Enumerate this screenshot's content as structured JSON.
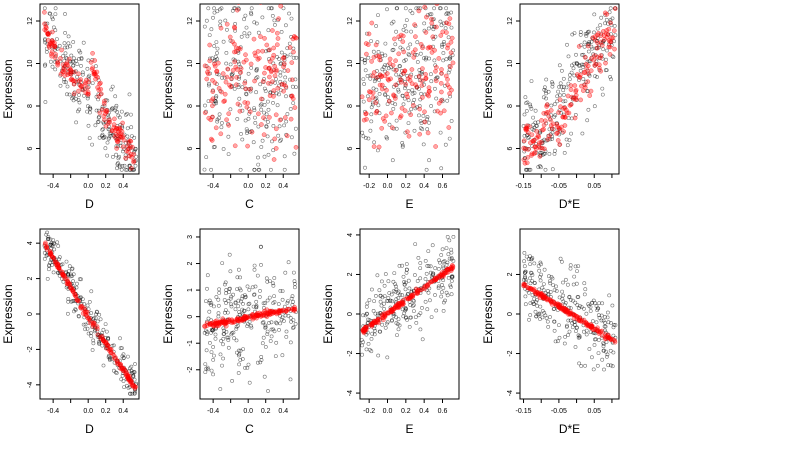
{
  "colors": {
    "observed": "#000000",
    "fitted": "#ff0000",
    "background": "#ffffff"
  },
  "chart_data": [
    {
      "type": "scatter",
      "panel": "top-1",
      "xlabel": "D",
      "ylabel": "Expression",
      "xlim": [
        -0.55,
        0.58
      ],
      "ylim": [
        4.8,
        12.8
      ],
      "xticks": [
        -0.4,
        -0.2,
        0.0,
        0.2,
        0.4
      ],
      "xtick_labels": [
        "-0.4",
        "",
        "0.0",
        "0.2",
        "0.4"
      ],
      "yticks": [
        6,
        8,
        10,
        12
      ],
      "ytick_labels": [
        "6",
        "8",
        "10",
        "12"
      ],
      "observed": {
        "x_range": [
          -0.5,
          0.55
        ],
        "y_range": [
          5.0,
          12.6
        ],
        "trend": [
          [
            -0.5,
            11.4
          ],
          [
            -0.3,
            10.1
          ],
          [
            0.0,
            8.8
          ],
          [
            0.2,
            7.4
          ],
          [
            0.5,
            5.8
          ]
        ],
        "spread": 0.9
      },
      "fitted": {
        "x_range": [
          -0.5,
          0.55
        ],
        "trend": [
          [
            -0.5,
            11.6
          ],
          [
            -0.3,
            9.9
          ],
          [
            0.0,
            8.6
          ],
          [
            0.05,
            10.0
          ],
          [
            0.2,
            7.4
          ],
          [
            0.5,
            5.8
          ]
        ],
        "spread": 0.3
      }
    },
    {
      "type": "scatter",
      "panel": "top-2",
      "xlabel": "C",
      "ylabel": "Expression",
      "xlim": [
        -0.55,
        0.58
      ],
      "ylim": [
        4.8,
        12.8
      ],
      "xticks": [
        -0.4,
        -0.2,
        0.0,
        0.2,
        0.4
      ],
      "xtick_labels": [
        "-0.4",
        "",
        "0.0",
        "0.2",
        "0.4"
      ],
      "yticks": [
        6,
        8,
        10,
        12
      ],
      "ytick_labels": [
        "6",
        "8",
        "10",
        "12"
      ],
      "observed": {
        "x_range": [
          -0.5,
          0.55
        ],
        "y_range": [
          5.0,
          12.6
        ],
        "trend": [
          [
            -0.5,
            9.0
          ],
          [
            0.5,
            9.0
          ]
        ],
        "spread": 2.2
      },
      "fitted": {
        "x_range": [
          -0.5,
          0.55
        ],
        "trend": [
          [
            -0.5,
            9.2
          ],
          [
            0.5,
            9.4
          ]
        ],
        "spread": 1.6
      }
    },
    {
      "type": "scatter",
      "panel": "top-3",
      "xlabel": "E",
      "ylabel": "Expression",
      "xlim": [
        -0.3,
        0.78
      ],
      "ylim": [
        4.8,
        12.8
      ],
      "xticks": [
        -0.2,
        0.0,
        0.2,
        0.4,
        0.6
      ],
      "xtick_labels": [
        "-0.2",
        "0.0",
        "0.2",
        "0.4",
        "0.6"
      ],
      "yticks": [
        6,
        8,
        10,
        12
      ],
      "ytick_labels": [
        "6",
        "8",
        "10",
        "12"
      ],
      "observed": {
        "x_range": [
          -0.28,
          0.72
        ],
        "y_range": [
          5.0,
          12.6
        ],
        "trend": [
          [
            -0.28,
            8.5
          ],
          [
            0.0,
            9.0
          ],
          [
            0.3,
            9.4
          ],
          [
            0.7,
            10.3
          ]
        ],
        "spread": 1.9
      },
      "fitted": {
        "x_range": [
          -0.28,
          0.72
        ],
        "trend": [
          [
            -0.28,
            9.0
          ],
          [
            0.0,
            8.8
          ],
          [
            0.3,
            9.2
          ],
          [
            0.7,
            10.2
          ]
        ],
        "spread": 1.4
      }
    },
    {
      "type": "scatter",
      "panel": "top-4",
      "xlabel": "D*E",
      "ylabel": "Expression",
      "xlim": [
        -0.16,
        0.12
      ],
      "ylim": [
        4.8,
        12.8
      ],
      "xticks": [
        -0.15,
        -0.1,
        -0.05,
        0.0,
        0.05,
        0.1
      ],
      "xtick_labels": [
        "-0.15",
        "",
        "-0.05",
        "",
        "0.05",
        ""
      ],
      "yticks": [
        6,
        8,
        10,
        12
      ],
      "ytick_labels": [
        "6",
        "8",
        "10",
        "12"
      ],
      "observed": {
        "x_range": [
          -0.15,
          0.11
        ],
        "y_range": [
          5.0,
          12.6
        ],
        "trend": [
          [
            -0.15,
            6.4
          ],
          [
            -0.05,
            7.4
          ],
          [
            0.0,
            9.6
          ],
          [
            0.05,
            10.6
          ],
          [
            0.11,
            11.2
          ]
        ],
        "spread": 1.1
      },
      "fitted": {
        "x_range": [
          -0.15,
          0.11
        ],
        "trend": [
          [
            -0.15,
            6.2
          ],
          [
            -0.05,
            7.2
          ],
          [
            0.0,
            9.0
          ],
          [
            0.05,
            10.2
          ],
          [
            0.11,
            11.4
          ]
        ],
        "spread": 0.6
      }
    },
    {
      "type": "scatter",
      "panel": "bottom-1",
      "xlabel": "D",
      "ylabel": "Expression",
      "xlim": [
        -0.55,
        0.58
      ],
      "ylim": [
        -4.8,
        4.8
      ],
      "xticks": [
        -0.4,
        -0.2,
        0.0,
        0.2,
        0.4
      ],
      "xtick_labels": [
        "-0.4",
        "",
        "0.0",
        "0.2",
        "0.4"
      ],
      "yticks": [
        -4,
        -2,
        0,
        2,
        4
      ],
      "ytick_labels": [
        "-4",
        "-2",
        "0",
        "2",
        "4"
      ],
      "observed": {
        "x_range": [
          -0.5,
          0.55
        ],
        "y_range": [
          -4.5,
          4.6
        ],
        "trend": [
          [
            -0.5,
            4.0
          ],
          [
            0.0,
            -0.2
          ],
          [
            0.55,
            -4.3
          ]
        ],
        "spread": 0.7
      },
      "fitted": {
        "x_range": [
          -0.5,
          0.55
        ],
        "trend": [
          [
            -0.5,
            4.0
          ],
          [
            0.0,
            -0.2
          ],
          [
            0.55,
            -4.3
          ]
        ],
        "spread": 0.08
      }
    },
    {
      "type": "scatter",
      "panel": "bottom-2",
      "xlabel": "C",
      "ylabel": "Expression",
      "xlim": [
        -0.55,
        0.58
      ],
      "ylim": [
        -3.1,
        3.3
      ],
      "xticks": [
        -0.4,
        -0.2,
        0.0,
        0.2,
        0.4
      ],
      "xtick_labels": [
        "-0.4",
        "",
        "0.0",
        "0.2",
        "0.4"
      ],
      "yticks": [
        -2,
        -1,
        0,
        1,
        2,
        3
      ],
      "ytick_labels": [
        "-2",
        "-1",
        "0",
        "1",
        "2",
        "3"
      ],
      "observed": {
        "x_range": [
          -0.5,
          0.55
        ],
        "y_range": [
          -2.8,
          3.0
        ],
        "trend": [
          [
            -0.5,
            -0.2
          ],
          [
            0.5,
            0.3
          ]
        ],
        "spread": 1.0
      },
      "fitted": {
        "x_range": [
          -0.5,
          0.55
        ],
        "trend": [
          [
            -0.5,
            -0.35
          ],
          [
            0.5,
            0.3
          ]
        ],
        "spread": 0.05
      }
    },
    {
      "type": "scatter",
      "panel": "bottom-3",
      "xlabel": "E",
      "ylabel": "Expression",
      "xlim": [
        -0.3,
        0.78
      ],
      "ylim": [
        -4.3,
        4.3
      ],
      "xticks": [
        -0.2,
        0.0,
        0.2,
        0.4,
        0.6
      ],
      "xtick_labels": [
        "-0.2",
        "0.0",
        "0.2",
        "0.4",
        "0.6"
      ],
      "yticks": [
        -4,
        -2,
        0,
        2,
        4
      ],
      "ytick_labels": [
        "-4",
        "-2",
        "0",
        "2",
        "4"
      ],
      "observed": {
        "x_range": [
          -0.28,
          0.72
        ],
        "y_range": [
          -3.0,
          3.9
        ],
        "trend": [
          [
            -0.28,
            -0.9
          ],
          [
            0.0,
            0.2
          ],
          [
            0.72,
            2.5
          ]
        ],
        "spread": 0.9
      },
      "fitted": {
        "x_range": [
          -0.28,
          0.72
        ],
        "trend": [
          [
            -0.28,
            -0.9
          ],
          [
            0.72,
            2.4
          ]
        ],
        "spread": 0.06
      }
    },
    {
      "type": "scatter",
      "panel": "bottom-4",
      "xlabel": "D*E",
      "ylabel": "Expression",
      "xlim": [
        -0.16,
        0.12
      ],
      "ylim": [
        -4.3,
        4.3
      ],
      "xticks": [
        -0.15,
        -0.1,
        -0.05,
        0.0,
        0.05,
        0.1
      ],
      "xtick_labels": [
        "-0.15",
        "",
        "-0.05",
        "",
        "0.05",
        ""
      ],
      "yticks": [
        -4,
        -2,
        0,
        2
      ],
      "ytick_labels": [
        "-4",
        "-2",
        "0",
        "2"
      ],
      "observed": {
        "x_range": [
          -0.15,
          0.11
        ],
        "y_range": [
          -3.8,
          3.6
        ],
        "trend": [
          [
            -0.15,
            1.6
          ],
          [
            0.0,
            0.0
          ],
          [
            0.11,
            -1.4
          ]
        ],
        "spread": 1.0
      },
      "fitted": {
        "x_range": [
          -0.15,
          0.11
        ],
        "trend": [
          [
            -0.15,
            1.5
          ],
          [
            0.11,
            -1.4
          ]
        ],
        "spread": 0.06
      }
    }
  ]
}
